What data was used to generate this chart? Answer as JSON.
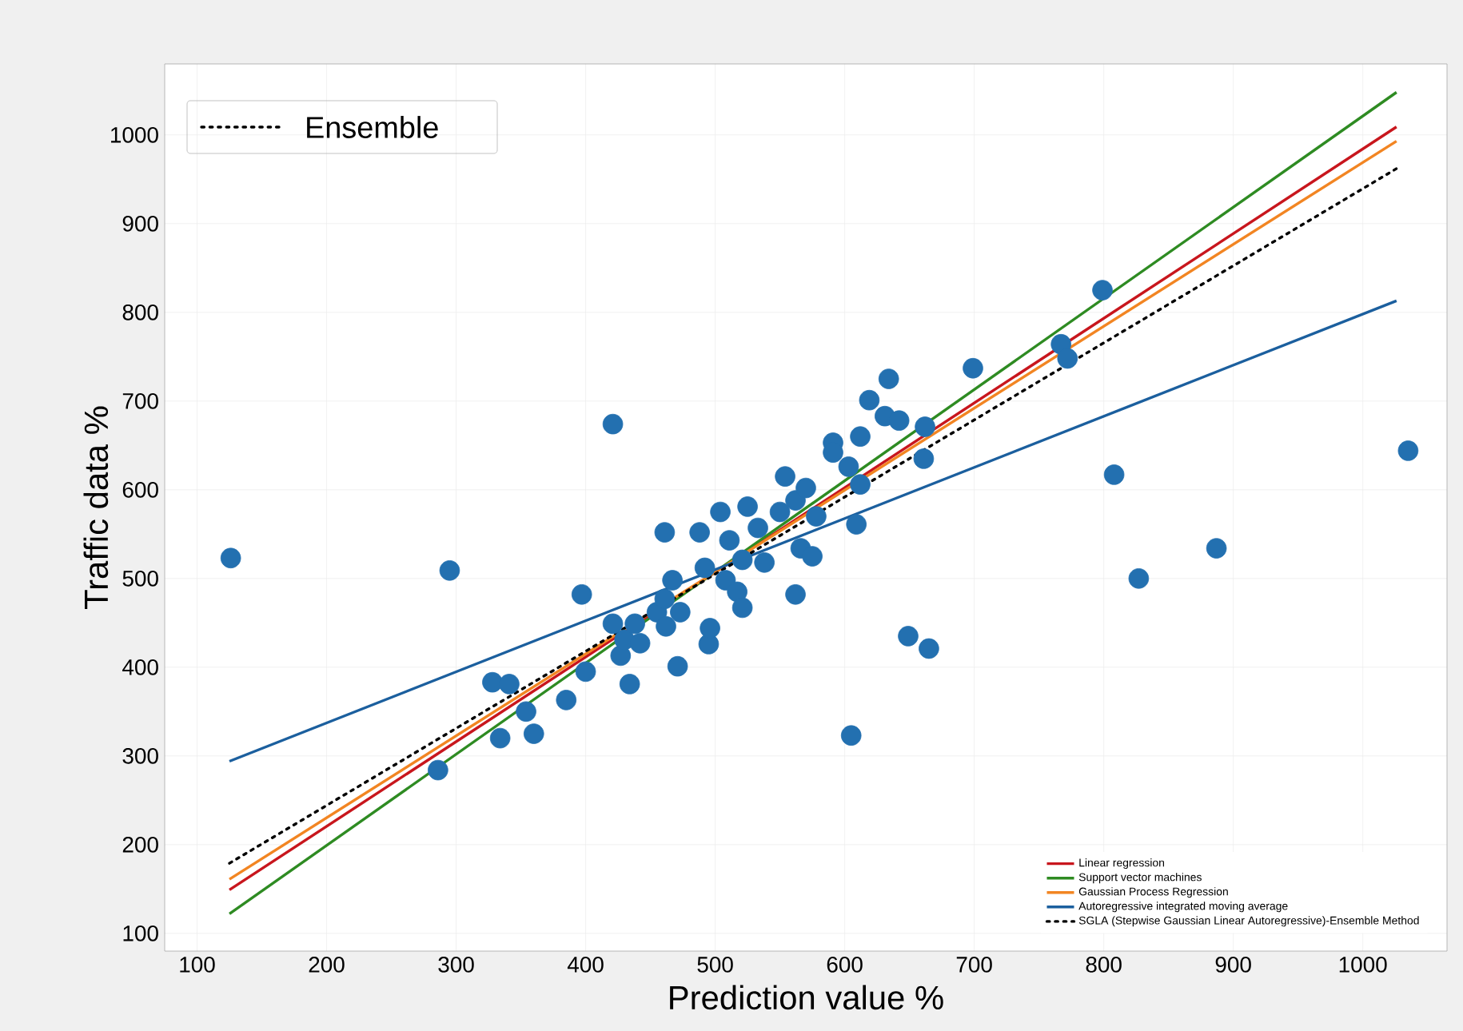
{
  "chart_data": {
    "type": "scatter",
    "xlabel": "Prediction value %",
    "ylabel": "Traffic data %",
    "xlim": [
      75,
      1065
    ],
    "ylim": [
      80,
      1080
    ],
    "xticks": [
      100,
      200,
      300,
      400,
      500,
      600,
      700,
      800,
      900,
      1000
    ],
    "yticks": [
      100,
      200,
      300,
      400,
      500,
      600,
      700,
      800,
      900,
      1000
    ],
    "grid": true,
    "legend": "bottom right",
    "marker": "circle",
    "annotations": [
      "Ensemble"
    ],
    "series": [
      {
        "color": "#2370b0",
        "x": [
          126,
          295,
          286,
          328,
          341,
          354,
          334,
          360,
          385,
          400,
          397,
          421,
          427,
          430,
          434,
          438,
          442,
          455,
          461,
          462,
          467,
          473,
          471,
          461,
          488,
          492,
          495,
          496,
          504,
          508,
          511,
          517,
          521,
          521,
          525,
          533,
          538,
          550,
          554,
          562,
          562,
          566,
          570,
          575,
          578,
          591,
          591,
          603,
          605,
          609,
          612,
          612,
          619,
          631,
          634,
          642,
          649,
          661,
          662,
          665,
          699,
          767,
          772,
          799,
          808,
          827,
          887,
          1035,
          421
        ],
        "values": [
          523,
          509,
          284,
          383,
          381,
          350,
          320,
          325,
          363,
          395,
          482,
          449,
          413,
          431,
          381,
          449,
          427,
          462,
          477,
          446,
          498,
          462,
          401,
          552,
          552,
          512,
          426,
          444,
          575,
          498,
          543,
          485,
          467,
          521,
          581,
          557,
          518,
          575,
          615,
          588,
          482,
          534,
          602,
          525,
          570,
          653,
          642,
          626,
          323,
          561,
          660,
          606,
          701,
          683,
          725,
          678,
          435,
          635,
          671,
          421,
          737,
          764,
          748,
          825,
          617,
          500,
          534,
          644,
          674
        ]
      },
      {
        "type": "line",
        "name": "Linear regression",
        "color": "#c8161d",
        "marker": "none",
        "line_style": "solid",
        "x": [
          125,
          1026
        ],
        "values": [
          149,
          1009
        ]
      },
      {
        "type": "line",
        "name": "Support vector machines",
        "color": "#2e8b22",
        "marker": "none",
        "line_style": "solid",
        "x": [
          125,
          1026
        ],
        "values": [
          122,
          1048
        ]
      },
      {
        "type": "line",
        "name": "Gaussian Process Regression",
        "color": "#f28522",
        "marker": "none",
        "line_style": "solid",
        "x": [
          125,
          1026
        ],
        "values": [
          161,
          993
        ]
      },
      {
        "type": "line",
        "name": "Autoregressive integrated moving average",
        "color": "#1b5f9e",
        "marker": "none",
        "line_style": "solid",
        "x": [
          125,
          1026
        ],
        "values": [
          294,
          813
        ]
      },
      {
        "type": "line",
        "name": "SGLA (Stepwise Gaussian Linear Autoregressive)-Ensemble Method",
        "color": "#000000",
        "marker": "none",
        "line_style": "dotted",
        "x": [
          125,
          1026
        ],
        "values": [
          179,
          962
        ]
      }
    ]
  }
}
